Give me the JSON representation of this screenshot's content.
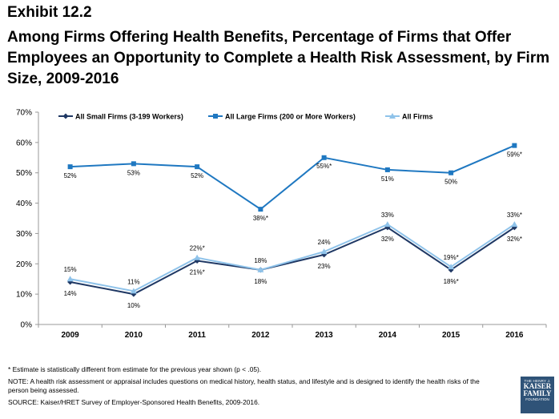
{
  "exhibit": "Exhibit 12.2",
  "title": "Among Firms Offering Health Benefits, Percentage of Firms that Offer Employees an Opportunity to Complete a Health Risk Assessment, by Firm Size, 2009-2016",
  "notes": {
    "asterisk": "* Estimate is statistically different from estimate for the previous year shown (p < .05).",
    "note": "NOTE: A health risk assessment or appraisal includes questions on medical history, health status, and lifestyle and is designed to identify the health risks of the person being assessed.",
    "source": "SOURCE: Kaiser/HRET Survey of Employer-Sponsored Health Benefits, 2009-2016."
  },
  "logo": {
    "line1": "THE HENRY J.",
    "line2": "KAISER",
    "line3": "FAMILY",
    "line4": "FOUNDATION"
  },
  "chart_data": {
    "type": "line",
    "categories": [
      "2009",
      "2010",
      "2011",
      "2012",
      "2013",
      "2014",
      "2015",
      "2016"
    ],
    "ylim": [
      0,
      70
    ],
    "yticks": [
      "0%",
      "10%",
      "20%",
      "30%",
      "40%",
      "50%",
      "60%",
      "70%"
    ],
    "legend_position": "top",
    "series": [
      {
        "name": "All Small Firms (3-199 Workers)",
        "color": "#1f3864",
        "marker": "diamond",
        "values": [
          14,
          10,
          21,
          18,
          23,
          32,
          18,
          32
        ],
        "labels": [
          "14%",
          "10%",
          "21%*",
          "18%",
          "23%",
          "32%",
          "18%*",
          "32%*"
        ]
      },
      {
        "name": "All Large Firms (200 or More Workers)",
        "color": "#1f78c1",
        "marker": "square",
        "values": [
          52,
          53,
          52,
          38,
          55,
          51,
          50,
          59
        ],
        "labels": [
          "52%",
          "53%",
          "52%",
          "38%*",
          "55%*",
          "51%",
          "50%",
          "59%*"
        ]
      },
      {
        "name": "All Firms",
        "color": "#8fc3ea",
        "marker": "triangle",
        "values": [
          15,
          11,
          22,
          18,
          24,
          33,
          19,
          33
        ],
        "labels": [
          "15%",
          "11%",
          "22%*",
          "18%",
          "24%",
          "33%",
          "19%*",
          "33%*"
        ]
      }
    ]
  }
}
